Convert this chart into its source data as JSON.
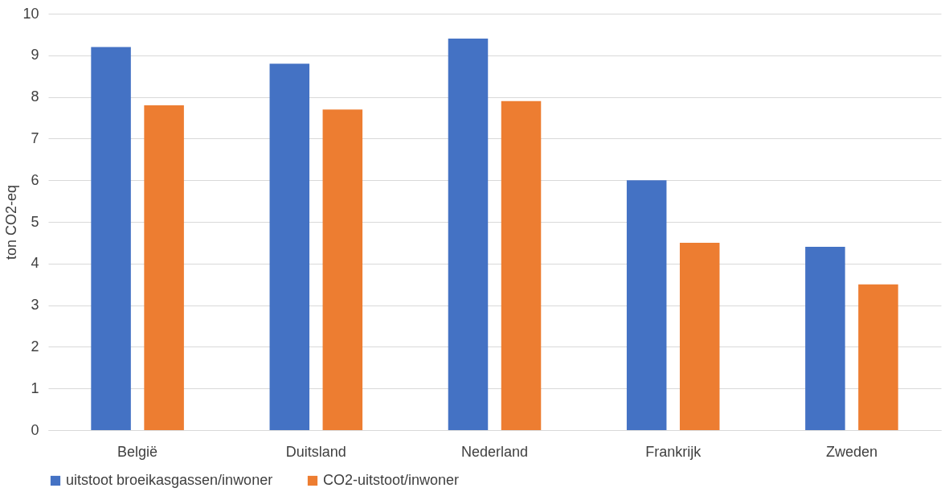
{
  "chart_data": {
    "type": "bar",
    "ylabel": "ton CO2-eq",
    "categories": [
      "België",
      "Duitsland",
      "Nederland",
      "Frankrijk",
      "Zweden"
    ],
    "series": [
      {
        "name": "uitstoot broeikasgassen/inwoner",
        "color": "#4472c4",
        "values": [
          9.2,
          8.8,
          9.4,
          6.0,
          4.4
        ]
      },
      {
        "name": "CO2-uitstoot/inwoner",
        "color": "#ed7d31",
        "values": [
          7.8,
          7.7,
          7.9,
          4.5,
          3.5
        ]
      }
    ],
    "ylim": [
      0,
      10
    ],
    "yticks": [
      0,
      1,
      2,
      3,
      4,
      5,
      6,
      7,
      8,
      9,
      10
    ],
    "grid": "y",
    "legend": "bottom"
  }
}
